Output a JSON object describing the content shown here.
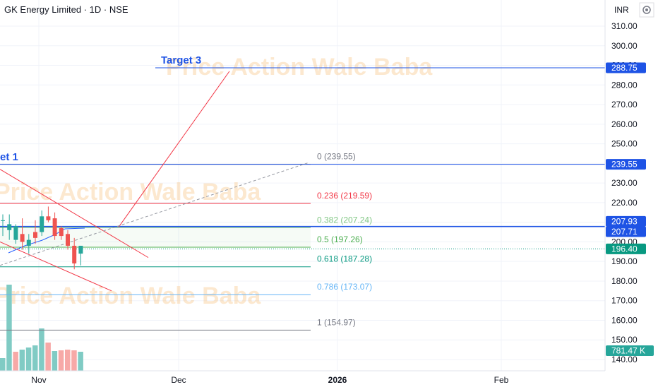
{
  "header": {
    "title": "GK Energy Limited · 1D · NSE",
    "currency": "INR"
  },
  "chart_data": {
    "type": "candlestick",
    "y_ticks": [
      310,
      300,
      290,
      280,
      270,
      260,
      250,
      240,
      230,
      220,
      210,
      200,
      190,
      180,
      170,
      160,
      150,
      140
    ],
    "ylim": [
      137,
      317
    ],
    "x_ticks": [
      "Nov",
      "Dec",
      "2026",
      "Feb"
    ],
    "candles": [
      {
        "o": 211,
        "h": 214,
        "l": 203,
        "c": 211
      },
      {
        "o": 206,
        "h": 214,
        "l": 201,
        "c": 209
      },
      {
        "o": 201,
        "h": 209,
        "l": 199,
        "c": 208
      },
      {
        "o": 204,
        "h": 212,
        "l": 196,
        "c": 200
      },
      {
        "o": 198,
        "h": 204,
        "l": 194,
        "c": 201
      },
      {
        "o": 205,
        "h": 211,
        "l": 199,
        "c": 202
      },
      {
        "o": 205,
        "h": 216,
        "l": 203,
        "c": 213
      },
      {
        "o": 213,
        "h": 218,
        "l": 210,
        "c": 211
      },
      {
        "o": 212,
        "h": 215,
        "l": 201,
        "c": 203
      },
      {
        "o": 207,
        "h": 208,
        "l": 201,
        "c": 203
      },
      {
        "o": 204,
        "h": 206,
        "l": 196,
        "c": 198
      },
      {
        "o": 198,
        "h": 202,
        "l": 186,
        "c": 189
      },
      {
        "o": 194,
        "h": 198,
        "l": 188,
        "c": 198
      }
    ],
    "volume_label": "781.47 K",
    "price_labels": [
      {
        "value": 288.75,
        "text": "288.75",
        "color": "#1e53e5"
      },
      {
        "value": 239.55,
        "text": "239.55",
        "color": "#1e53e5"
      },
      {
        "value": 207.93,
        "text": "207.93",
        "color": "#1e53e5"
      },
      {
        "value": 207.71,
        "text": "207.71",
        "color": "#1e53e5"
      },
      {
        "value": 196.4,
        "text": "196.40",
        "color": "#089981"
      }
    ],
    "fib_levels": [
      {
        "level": "0",
        "value": 239.55,
        "text": "0 (239.55)",
        "color": "#787b86"
      },
      {
        "level": "0.236",
        "value": 219.59,
        "text": "0.236 (219.59)",
        "color": "#f23645"
      },
      {
        "level": "0.382",
        "value": 207.24,
        "text": "0.382 (207.24)",
        "color": "#81c784"
      },
      {
        "level": "0.5",
        "value": 197.26,
        "text": "0.5 (197.26)",
        "color": "#4caf50"
      },
      {
        "level": "0.618",
        "value": 187.28,
        "text": "0.618 (187.28)",
        "color": "#089981"
      },
      {
        "level": "0.786",
        "value": 173.07,
        "text": "0.786 (173.07)",
        "color": "#64b5f6"
      },
      {
        "level": "1",
        "value": 154.97,
        "text": "1 (154.97)",
        "color": "#787b86"
      }
    ],
    "annotations": {
      "target3": "Target 3",
      "target1": "et 1",
      "watermark": "Price Action Wale Baba"
    },
    "colors": {
      "up": "#26a69a",
      "down": "#ef5350",
      "target_line": "#1e53e5",
      "trend_line": "#f23645"
    }
  }
}
